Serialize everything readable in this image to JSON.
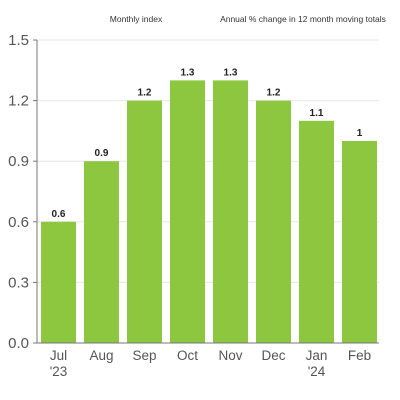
{
  "header": {
    "left": "Monthly index",
    "right": "Annual % change in 12 month moving totals"
  },
  "colors": {
    "bar": "#8dc63f",
    "grid": "#e6e6e6",
    "axis": "#777777"
  },
  "chart_data": {
    "type": "bar",
    "title": "",
    "xlabel": "",
    "ylabel": "",
    "categories": [
      [
        "Jul",
        "'23"
      ],
      [
        "Aug"
      ],
      [
        "Sep"
      ],
      [
        "Oct"
      ],
      [
        "Nov"
      ],
      [
        "Dec"
      ],
      [
        "Jan",
        "'24"
      ],
      [
        "Feb"
      ]
    ],
    "values": [
      0.6,
      0.9,
      1.2,
      1.3,
      1.3,
      1.2,
      1.1,
      1.0
    ],
    "data_labels": [
      "0.6",
      "0.9",
      "1.2",
      "1.3",
      "1.3",
      "1.2",
      "1.1",
      "1"
    ],
    "ylim": [
      0,
      1.5
    ],
    "yticks": [
      0.0,
      0.3,
      0.6,
      0.9,
      1.2,
      1.5
    ],
    "ytick_labels": [
      "0.0",
      "0.3",
      "0.6",
      "0.9",
      "1.2",
      "1.5"
    ],
    "grid": true,
    "legend": false
  }
}
